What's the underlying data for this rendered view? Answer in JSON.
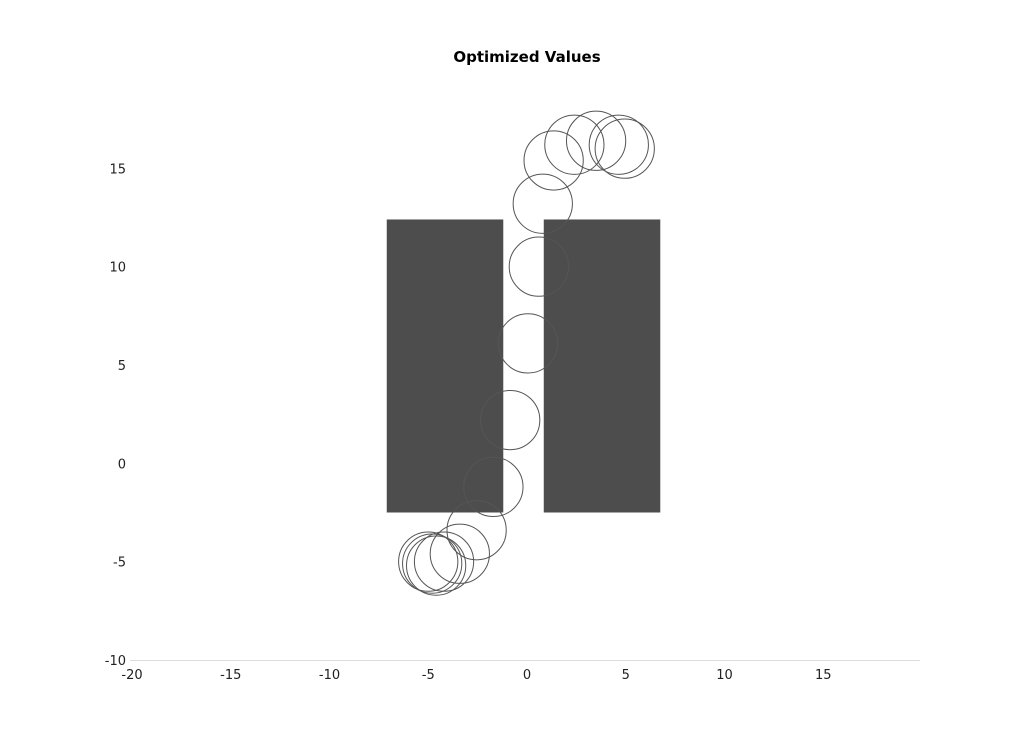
{
  "chart_data": {
    "type": "scatter",
    "title": "Optimized Values",
    "xlabel": "",
    "ylabel": "",
    "xlim": [
      -20,
      20
    ],
    "ylim": [
      -10,
      20
    ],
    "xticks": [
      -20,
      -15,
      -10,
      -5,
      0,
      5,
      10,
      15
    ],
    "yticks": [
      -10,
      -5,
      0,
      5,
      10,
      15
    ],
    "grid": false,
    "obstacles": [
      {
        "x0": -7.0,
        "x1": -1.1,
        "y0": -2.5,
        "y1": 12.4
      },
      {
        "x0": 0.95,
        "x1": 6.85,
        "y0": -2.5,
        "y1": 12.4
      }
    ],
    "circle_radius": 1.5,
    "circles": [
      {
        "x": -4.9,
        "y": -5.0
      },
      {
        "x": -4.7,
        "y": -5.1
      },
      {
        "x": -4.5,
        "y": -5.2
      },
      {
        "x": -4.1,
        "y": -5.0
      },
      {
        "x": -3.3,
        "y": -4.6
      },
      {
        "x": -2.45,
        "y": -3.4
      },
      {
        "x": -1.6,
        "y": -1.2
      },
      {
        "x": -0.75,
        "y": 2.2
      },
      {
        "x": 0.15,
        "y": 6.1
      },
      {
        "x": 0.7,
        "y": 10.0
      },
      {
        "x": 0.9,
        "y": 13.2
      },
      {
        "x": 1.45,
        "y": 15.4
      },
      {
        "x": 2.5,
        "y": 16.2
      },
      {
        "x": 3.6,
        "y": 16.4
      },
      {
        "x": 4.75,
        "y": 16.2
      },
      {
        "x": 5.05,
        "y": 16.0
      }
    ]
  }
}
